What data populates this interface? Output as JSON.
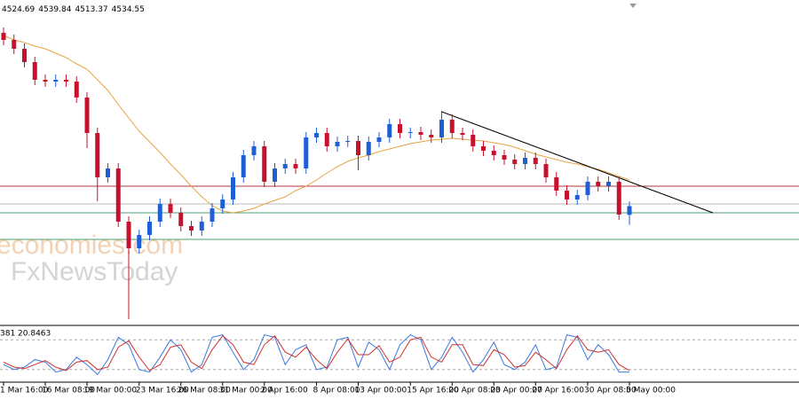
{
  "chart_data": {
    "type": "candlestick",
    "categories": [
      "1 Mar 16:00",
      null,
      null,
      null,
      "16 Mar 08:00",
      null,
      null,
      null,
      "19 Mar 00:00",
      null,
      null,
      null,
      null,
      "23 Mar 16:00",
      null,
      null,
      null,
      "26 Mar 08:00",
      null,
      null,
      null,
      "31 Mar 00:00",
      null,
      null,
      null,
      "2 Apr 16:00",
      null,
      null,
      null,
      null,
      "8 Apr 08:00",
      null,
      null,
      null,
      "13 Apr 00:00",
      null,
      null,
      null,
      null,
      "15 Apr 16:00",
      null,
      null,
      null,
      "20 Apr 08:00",
      null,
      null,
      null,
      "23 Apr 00:00",
      null,
      null,
      null,
      "27 Apr 16:00",
      null,
      null,
      null,
      null,
      "30 Apr 08:00",
      null,
      null,
      null,
      "5 May 00:00"
    ],
    "open": [
      4730,
      4722,
      4712,
      4697,
      4677,
      4675,
      4677,
      4675,
      4657,
      4617,
      4567,
      4577,
      4517,
      4487,
      4502,
      4517,
      4537,
      4527,
      4512,
      4507,
      4517,
      4532,
      4542,
      4567,
      4592,
      4602,
      4562,
      4577,
      4582,
      4577,
      4612,
      4617,
      4602,
      4607,
      4608,
      4592,
      4607,
      4612,
      4627,
      4617,
      4618,
      4615,
      4612,
      4632,
      4617,
      4615,
      4602,
      4597,
      4592,
      4587,
      4582,
      4589,
      4582,
      4567,
      4552,
      4542,
      4547,
      4562,
      4557,
      4562,
      4524.69
    ],
    "high": [
      4736,
      4728,
      4718,
      4703,
      4683,
      4683,
      4683,
      4681,
      4663,
      4623,
      4583,
      4583,
      4523,
      4508,
      4523,
      4543,
      4543,
      4533,
      4518,
      4523,
      4538,
      4548,
      4573,
      4598,
      4608,
      4608,
      4583,
      4588,
      4588,
      4618,
      4623,
      4623,
      4613,
      4614,
      4614,
      4613,
      4618,
      4633,
      4633,
      4623,
      4624,
      4621,
      4642,
      4638,
      4623,
      4621,
      4608,
      4603,
      4598,
      4593,
      4595,
      4595,
      4588,
      4573,
      4558,
      4553,
      4568,
      4568,
      4568,
      4568,
      4539.84
    ],
    "low": [
      4716,
      4706,
      4691,
      4671,
      4669,
      4669,
      4669,
      4651,
      4600,
      4540,
      4561,
      4511,
      4407,
      4481,
      4496,
      4511,
      4521,
      4506,
      4501,
      4501,
      4511,
      4526,
      4536,
      4561,
      4586,
      4556,
      4556,
      4571,
      4571,
      4571,
      4606,
      4596,
      4596,
      4601,
      4575,
      4586,
      4601,
      4606,
      4611,
      4611,
      4609,
      4606,
      4606,
      4611,
      4609,
      4596,
      4591,
      4586,
      4581,
      4576,
      4576,
      4576,
      4561,
      4546,
      4536,
      4536,
      4541,
      4551,
      4551,
      4519,
      4513.37
    ],
    "close": [
      4722,
      4712,
      4697,
      4677,
      4675,
      4677,
      4675,
      4657,
      4617,
      4567,
      4577,
      4517,
      4487,
      4502,
      4517,
      4537,
      4527,
      4512,
      4507,
      4517,
      4532,
      4542,
      4567,
      4592,
      4602,
      4562,
      4577,
      4582,
      4577,
      4612,
      4617,
      4602,
      4607,
      4608,
      4592,
      4607,
      4612,
      4627,
      4617,
      4618,
      4615,
      4612,
      4632,
      4617,
      4615,
      4602,
      4597,
      4592,
      4587,
      4582,
      4589,
      4582,
      4567,
      4552,
      4542,
      4547,
      4562,
      4557,
      4562,
      4525,
      4534.55
    ],
    "up_color": "#1f5fd6",
    "down_color": "#c8102e",
    "ylim": [
      4402,
      4767
    ],
    "ma": {
      "color": "#e8a445",
      "values": [
        4727,
        4722,
        4719,
        4715,
        4712,
        4707,
        4702,
        4695,
        4689,
        4677,
        4665,
        4649,
        4634,
        4619,
        4607,
        4595,
        4582,
        4570,
        4557,
        4545,
        4535,
        4529,
        4527,
        4529,
        4532,
        4537,
        4541,
        4545,
        4552,
        4557,
        4564,
        4572,
        4579,
        4585,
        4589,
        4592,
        4596,
        4599,
        4602,
        4605,
        4607,
        4609,
        4610,
        4611,
        4610,
        4609,
        4608,
        4606,
        4604,
        4601,
        4597,
        4593,
        4590,
        4587,
        4584,
        4582,
        4579,
        4576,
        4572,
        4568,
        4564
      ]
    },
    "levels": [
      {
        "value": 4557,
        "color": "#b03a3a"
      },
      {
        "value": 4537,
        "color": "#b8b8b8"
      },
      {
        "value": 4527,
        "color": "#4aa070"
      },
      {
        "value": 4497,
        "color": "#4aa070"
      }
    ],
    "trendline": {
      "x": [
        42,
        68
      ],
      "values": [
        4641,
        4527
      ],
      "color": "#000000"
    },
    "stochastic": {
      "title": "381 20.8463",
      "ylim": [
        0,
        100
      ],
      "levels": [
        80,
        20
      ],
      "series": [
        {
          "color": "#3a78e0",
          "values": [
            30,
            20,
            25,
            40,
            35,
            15,
            20,
            45,
            30,
            10,
            40,
            85,
            70,
            20,
            15,
            45,
            80,
            60,
            15,
            30,
            85,
            90,
            55,
            20,
            40,
            90,
            85,
            30,
            60,
            70,
            20,
            25,
            80,
            85,
            25,
            75,
            60,
            20,
            70,
            90,
            80,
            20,
            45,
            85,
            55,
            15,
            40,
            75,
            30,
            20,
            35,
            70,
            20,
            25,
            90,
            85,
            40,
            70,
            50,
            15,
            15
          ]
        },
        {
          "color": "#d03030",
          "values": [
            35,
            25,
            22,
            30,
            38,
            25,
            18,
            35,
            38,
            20,
            25,
            65,
            78,
            45,
            18,
            30,
            65,
            70,
            35,
            22,
            60,
            88,
            70,
            35,
            30,
            70,
            88,
            55,
            45,
            65,
            40,
            22,
            55,
            82,
            50,
            50,
            68,
            35,
            45,
            80,
            85,
            45,
            35,
            70,
            70,
            30,
            28,
            60,
            50,
            25,
            28,
            55,
            40,
            22,
            60,
            88,
            60,
            55,
            60,
            30,
            18
          ]
        }
      ]
    },
    "watermark": [
      "economies.com",
      "FxNewsToday"
    ]
  }
}
